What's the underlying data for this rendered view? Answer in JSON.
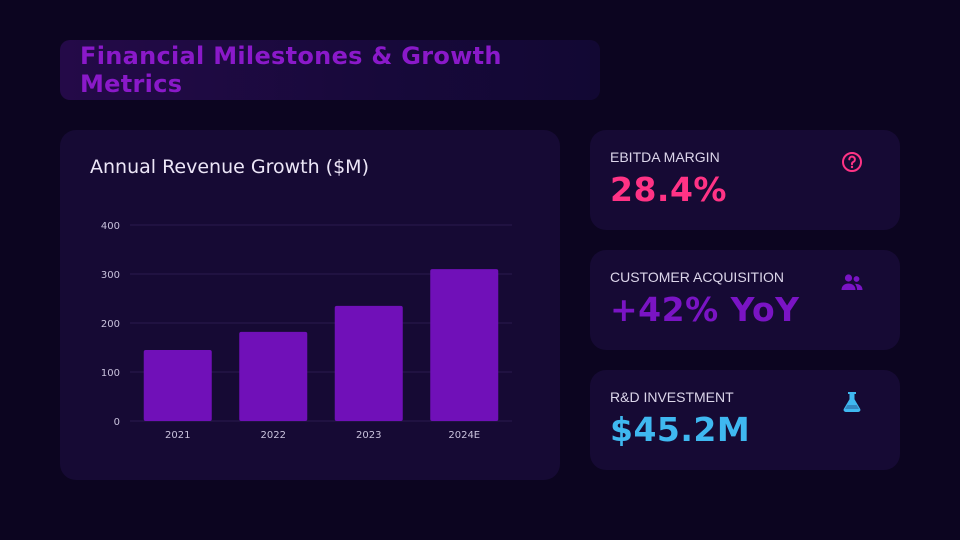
{
  "page": {
    "title": "Financial Milestones & Growth Metrics"
  },
  "colors": {
    "background": "#0c0520",
    "card": "#160a34",
    "bar": "#7010b8",
    "title": "#8a19c9",
    "ebitda": "#ff3385",
    "customer": "#7a14c4",
    "rnd": "#3fb8f0"
  },
  "chart_data": {
    "type": "bar",
    "title": "Annual Revenue Growth ($M)",
    "categories": [
      "2021",
      "2022",
      "2023",
      "2024E"
    ],
    "values": [
      145,
      182,
      235,
      310
    ],
    "ylim": [
      0,
      400
    ],
    "yticks": [
      0,
      100,
      200,
      300,
      400
    ],
    "xlabel": "",
    "ylabel": "",
    "grid": true
  },
  "kpis": [
    {
      "label": "EBITDA MARGIN",
      "value": "28.4%",
      "icon": "question-circle-icon"
    },
    {
      "label": "CUSTOMER ACQUISITION",
      "value": "+42% YoY",
      "icon": "users-icon"
    },
    {
      "label": "R&D INVESTMENT",
      "value": "$45.2M",
      "icon": "flask-icon"
    }
  ]
}
